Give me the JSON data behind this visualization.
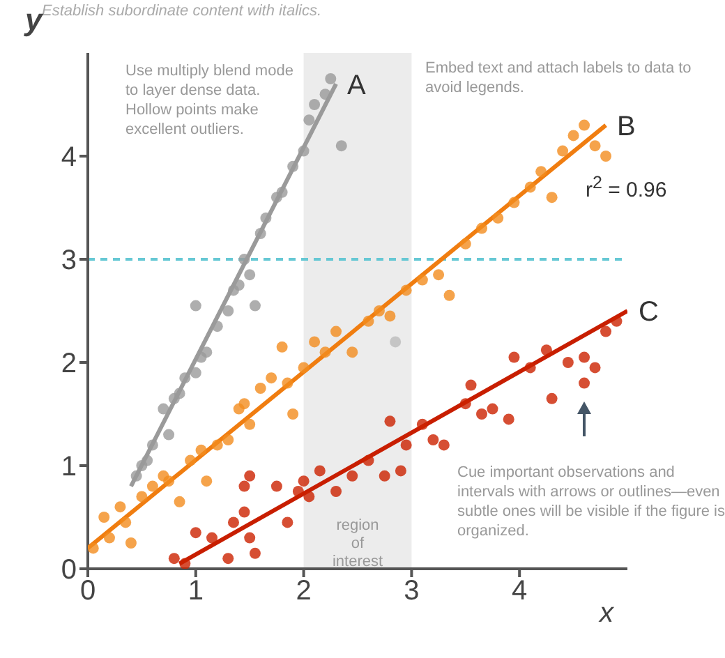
{
  "chart_data": {
    "type": "scatter",
    "subtitle": "Establish subordinate content with italics.",
    "xlabel": "x",
    "ylabel": "y",
    "xlim": [
      0,
      5
    ],
    "ylim": [
      0,
      5
    ],
    "xticks": [
      0,
      1,
      2,
      3,
      4
    ],
    "yticks": [
      0,
      1,
      2,
      3,
      4
    ],
    "grid": false,
    "legend": false,
    "marker": "circle",
    "series": [
      {
        "color": "#9a9a9a",
        "x": [
          0.45,
          0.5,
          0.55,
          0.6,
          0.7,
          0.75,
          0.8,
          0.85,
          0.9,
          1.0,
          1.05,
          1.1,
          1.2,
          1.3,
          1.35,
          1.4,
          1.45,
          1.5,
          1.55,
          1.6,
          1.65,
          1.75,
          1.8,
          1.9,
          2.0,
          2.05,
          2.1,
          2.2,
          2.25
        ],
        "values": [
          0.9,
          1.0,
          1.05,
          1.2,
          1.55,
          1.3,
          1.65,
          1.7,
          1.85,
          1.9,
          2.05,
          2.1,
          2.35,
          2.5,
          2.7,
          2.75,
          3.0,
          2.85,
          2.55,
          3.25,
          3.4,
          3.6,
          3.65,
          3.9,
          4.05,
          4.35,
          4.5,
          4.6,
          4.75
        ]
      },
      {
        "color": "#f28c1e",
        "x": [
          0.05,
          0.15,
          0.2,
          0.3,
          0.35,
          0.4,
          0.5,
          0.6,
          0.7,
          0.75,
          0.85,
          0.95,
          1.05,
          1.1,
          1.2,
          1.3,
          1.4,
          1.45,
          1.5,
          1.6,
          1.7,
          1.8,
          1.85,
          1.9,
          2.0,
          2.1,
          2.2,
          2.3,
          2.45,
          2.6,
          2.7,
          2.8,
          2.95,
          3.1,
          3.25,
          3.35,
          3.5,
          3.65,
          3.8,
          3.95,
          4.1,
          4.2,
          4.3,
          4.4,
          4.5,
          4.6,
          4.7,
          4.8
        ],
        "values": [
          0.2,
          0.5,
          0.3,
          0.6,
          0.45,
          0.25,
          0.7,
          0.8,
          0.9,
          0.85,
          0.65,
          1.05,
          1.15,
          0.85,
          1.2,
          1.25,
          1.55,
          1.6,
          1.4,
          1.75,
          1.85,
          2.15,
          1.8,
          1.5,
          1.95,
          2.2,
          2.1,
          2.3,
          2.1,
          2.4,
          2.5,
          2.45,
          2.7,
          2.8,
          2.85,
          2.65,
          3.15,
          3.3,
          3.4,
          3.55,
          3.7,
          3.85,
          3.6,
          4.05,
          4.2,
          4.3,
          4.1,
          4.0
        ]
      },
      {
        "color": "#cc2200",
        "x": [
          0.8,
          0.9,
          1.0,
          1.15,
          1.3,
          1.35,
          1.45,
          1.45,
          1.5,
          1.55,
          1.5,
          1.75,
          1.85,
          1.95,
          2.0,
          2.05,
          2.15,
          2.3,
          2.45,
          2.6,
          2.75,
          2.8,
          2.9,
          2.95,
          3.1,
          3.2,
          3.3,
          3.5,
          3.55,
          3.65,
          3.75,
          3.9,
          3.95,
          4.1,
          4.25,
          4.3,
          4.45,
          4.6,
          4.7,
          4.8,
          4.9
        ],
        "values": [
          0.1,
          0.05,
          0.35,
          0.3,
          0.1,
          0.45,
          0.55,
          0.8,
          0.3,
          0.15,
          0.9,
          0.8,
          0.45,
          0.75,
          0.85,
          0.7,
          0.95,
          0.75,
          0.9,
          1.05,
          0.9,
          1.43,
          0.95,
          1.2,
          1.4,
          1.25,
          1.2,
          1.6,
          1.78,
          1.5,
          1.55,
          1.45,
          2.05,
          1.95,
          2.12,
          1.65,
          2.0,
          2.05,
          1.95,
          2.3,
          2.4
        ]
      },
      {
        "color": "#9a9a9a",
        "x": [
          1.0,
          2.35
        ],
        "values": [
          2.55,
          4.1
        ]
      },
      {
        "color": "#bbbbbb",
        "x": [
          2.85
        ],
        "values": [
          2.2
        ]
      },
      {
        "color": "#cc2200",
        "x": [
          4.6
        ],
        "values": [
          1.8
        ]
      },
      {
        "type": "line",
        "marker": "none",
        "name": "A",
        "color": "#9a9a9a",
        "x": [
          0.4,
          2.3
        ],
        "values": [
          0.8,
          4.7
        ]
      },
      {
        "type": "line",
        "marker": "none",
        "name": "B",
        "color": "#f07d10",
        "x": [
          0.0,
          4.8
        ],
        "values": [
          0.2,
          4.3
        ]
      },
      {
        "type": "line",
        "marker": "none",
        "name": "C",
        "color": "#c81e00",
        "x": [
          0.85,
          5.0
        ],
        "values": [
          0.05,
          2.5
        ]
      }
    ],
    "ref_lines": [
      {
        "axis": "y",
        "value": 3,
        "color": "#66c8d4",
        "line_style": "dashed"
      }
    ],
    "bands": [
      {
        "axis": "x",
        "from": 2,
        "to": 3,
        "label": "region of interest",
        "color": "#ececec"
      }
    ],
    "annotations": [
      "Use multiply blend mode to layer dense data. Hollow points make excellent outliers.",
      "Embed text and attach labels to data to avoid legends.",
      "r$^{2}$ = 0.96",
      "Cue important observations and intervals with arrows or outlines—even subtle ones will be visible if the figure is organized."
    ]
  }
}
